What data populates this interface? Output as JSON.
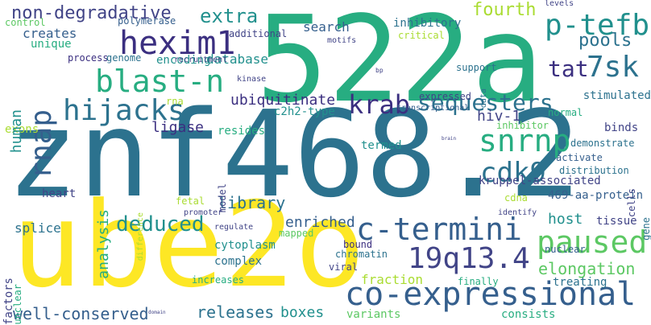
{
  "palette": {
    "purple": "#3b2f80",
    "indigo": "#414487",
    "blue": "#355f8d",
    "steel": "#2c728e",
    "teal": "#21908d",
    "green": "#27ad81",
    "lime": "#5cc863",
    "yellowgreen": "#aadc32",
    "yellow": "#fde725",
    "darkpurple": "#440154"
  },
  "words": [
    "znf468.2",
    "522a",
    "ube2o",
    "co-expressional",
    "hexim1",
    "c-termini",
    "blast-n",
    "19q13.4",
    "snrnp",
    "cdk9",
    "hijacks",
    "p-tefb",
    "tat",
    "7sk",
    "sequesters",
    "krab",
    "paused",
    "rnap",
    "non-degradative",
    "extra",
    "fourth",
    "deduced",
    "well-conserved",
    "releases",
    "boxes",
    "elongation",
    "pools",
    "ubiquitinate",
    "hiv-1",
    "ligase",
    "library",
    "enriched",
    "host",
    "search",
    "database",
    "fraction",
    "creates",
    "splice",
    "resides",
    "termed",
    "treating",
    "consists",
    "variants",
    "kruppel-associated",
    "469-aa-protein",
    "exons",
    "heart",
    "cytoplasm",
    "complex",
    "mapped",
    "bound",
    "chromatin",
    "viral",
    "finally",
    "increases",
    "c2h2-type",
    "inhibitory",
    "critical",
    "additional",
    "polymerase",
    "unique",
    "process",
    "genome",
    "encoding",
    "recruitment",
    "motifs",
    "support",
    "bp",
    "levels",
    "control",
    "rna",
    "expressed",
    "transcriptional",
    "normal",
    "inhibitor",
    "stimulated",
    "binds",
    "demonstrate",
    "activate",
    "distribution",
    "cdna",
    "fetal",
    "regulate",
    "promoter",
    "identify",
    "nuclear",
    "tissue",
    "kinase",
    "brain",
    "domain",
    "analysis",
    "human",
    "factors",
    "unclear",
    "model",
    "difference",
    "data",
    "cells",
    "gene"
  ]
}
